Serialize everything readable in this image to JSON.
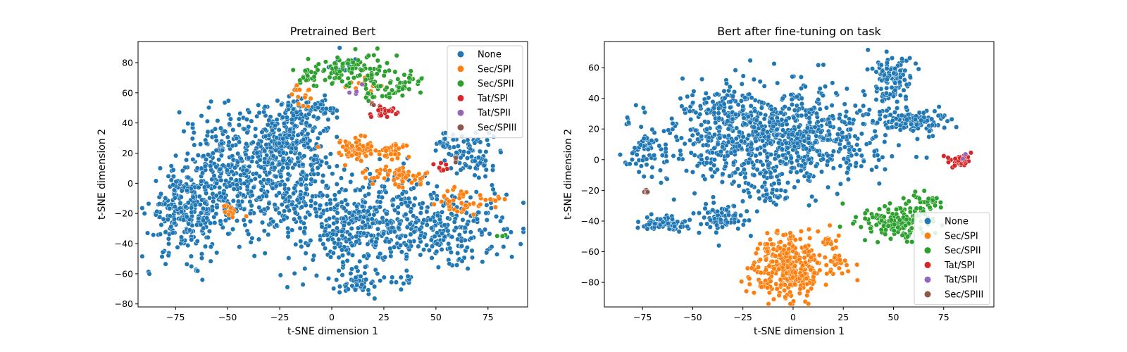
{
  "chart_data": [
    {
      "type": "scatter",
      "title": "Pretrained Bert",
      "xlabel": "t-SNE dimension 1",
      "ylabel": "t-SNE dimension 2",
      "xlim": [
        -93,
        94
      ],
      "ylim": [
        -82,
        94
      ],
      "xticks": [
        -75,
        -50,
        -25,
        0,
        25,
        50,
        75
      ],
      "yticks": [
        -80,
        -60,
        -40,
        -20,
        0,
        20,
        40,
        60,
        80
      ],
      "grid": false,
      "legend_position": "top-right",
      "series": [
        {
          "name": "None",
          "color": "#1f77b4",
          "clusters": [
            {
              "cx": -70,
              "cy": -20,
              "sx": 9,
              "sy": 14,
              "n": 260
            },
            {
              "cx": -50,
              "cy": 10,
              "sx": 12,
              "sy": 20,
              "n": 260
            },
            {
              "cx": -25,
              "cy": 5,
              "sx": 14,
              "sy": 22,
              "n": 320
            },
            {
              "cx": -20,
              "cy": 28,
              "sx": 9,
              "sy": 12,
              "n": 180
            },
            {
              "cx": 15,
              "cy": -25,
              "sx": 20,
              "sy": 16,
              "n": 420
            },
            {
              "cx": 55,
              "cy": -30,
              "sx": 16,
              "sy": 12,
              "n": 220
            },
            {
              "cx": 68,
              "cy": 18,
              "sx": 6,
              "sy": 8,
              "n": 70
            },
            {
              "cx": 55,
              "cy": 28,
              "sx": 3,
              "sy": 4,
              "n": 25
            },
            {
              "cx": 10,
              "cy": -66,
              "sx": 6,
              "sy": 4,
              "n": 50
            },
            {
              "cx": -15,
              "cy": 48,
              "sx": 6,
              "sy": 4,
              "n": 40
            },
            {
              "cx": -5,
              "cy": 50,
              "sx": 3,
              "sy": 3,
              "n": 25
            },
            {
              "cx": 35,
              "cy": -64,
              "sx": 3,
              "sy": 2,
              "n": 12
            },
            {
              "cx": 5,
              "cy": 80,
              "sx": 4,
              "sy": 3,
              "n": 12
            }
          ]
        },
        {
          "name": "Sec/SPI",
          "color": "#ff7f0e",
          "clusters": [
            {
              "cx": 12,
              "cy": 22,
              "sx": 5,
              "sy": 4,
              "n": 70
            },
            {
              "cx": 30,
              "cy": 22,
              "sx": 3,
              "sy": 3,
              "n": 30
            },
            {
              "cx": 35,
              "cy": 5,
              "sx": 6,
              "sy": 3,
              "n": 45
            },
            {
              "cx": 62,
              "cy": -12,
              "sx": 6,
              "sy": 4,
              "n": 40
            },
            {
              "cx": -50,
              "cy": -18,
              "sx": 3,
              "sy": 2,
              "n": 14
            },
            {
              "cx": 80,
              "cy": -12,
              "sx": 3,
              "sy": 2,
              "n": 8
            },
            {
              "cx": -15,
              "cy": 58,
              "sx": 4,
              "sy": 4,
              "n": 15
            },
            {
              "cx": 20,
              "cy": 5,
              "sx": 3,
              "sy": 3,
              "n": 12
            },
            {
              "cx": 15,
              "cy": 65,
              "sx": 4,
              "sy": 3,
              "n": 12
            }
          ]
        },
        {
          "name": "Sec/SPII",
          "color": "#2ca02c",
          "clusters": [
            {
              "cx": 10,
              "cy": 75,
              "sx": 9,
              "sy": 6,
              "n": 90
            },
            {
              "cx": 25,
              "cy": 62,
              "sx": 6,
              "sy": 4,
              "n": 40
            },
            {
              "cx": 38,
              "cy": 68,
              "sx": 3,
              "sy": 3,
              "n": 20
            },
            {
              "cx": -10,
              "cy": 72,
              "sx": 4,
              "sy": 3,
              "n": 20
            },
            {
              "cx": 80,
              "cy": -35,
              "sx": 2,
              "sy": 1,
              "n": 4
            }
          ]
        },
        {
          "name": "Tat/SPI",
          "color": "#d62728",
          "clusters": [
            {
              "cx": 22,
              "cy": 47,
              "sx": 4,
              "sy": 2,
              "n": 22
            },
            {
              "cx": 52,
              "cy": 10,
              "sx": 2,
              "sy": 2,
              "n": 8
            }
          ]
        },
        {
          "name": "Tat/SPII",
          "color": "#9467bd",
          "clusters": [
            {
              "cx": 12,
              "cy": 62,
              "sx": 2,
              "sy": 2,
              "n": 4
            }
          ]
        },
        {
          "name": "Sec/SPIII",
          "color": "#8c564b",
          "clusters": [
            {
              "cx": 60,
              "cy": 16,
              "sx": 1,
              "sy": 1,
              "n": 3
            },
            {
              "cx": 20,
              "cy": 52,
              "sx": 1,
              "sy": 1,
              "n": 2
            }
          ]
        }
      ]
    },
    {
      "type": "scatter",
      "title": "Bert after fine-tuning on task",
      "xlabel": "t-SNE dimension 1",
      "ylabel": "t-SNE dimension 2",
      "xlim": [
        -94,
        100
      ],
      "ylim": [
        -96,
        77
      ],
      "xticks": [
        -75,
        -50,
        -25,
        0,
        25,
        50,
        75
      ],
      "yticks": [
        -80,
        -60,
        -40,
        -20,
        0,
        20,
        40,
        60
      ],
      "grid": false,
      "legend_position": "lower-right",
      "series": [
        {
          "name": "None",
          "color": "#1f77b4",
          "clusters": [
            {
              "cx": 0,
              "cy": 15,
              "sx": 22,
              "sy": 16,
              "n": 650
            },
            {
              "cx": -35,
              "cy": 20,
              "sx": 12,
              "sy": 16,
              "n": 250
            },
            {
              "cx": 50,
              "cy": 55,
              "sx": 5,
              "sy": 7,
              "n": 90
            },
            {
              "cx": 58,
              "cy": 25,
              "sx": 10,
              "sy": 4,
              "n": 120
            },
            {
              "cx": -65,
              "cy": -42,
              "sx": 6,
              "sy": 2,
              "n": 90
            },
            {
              "cx": -35,
              "cy": -38,
              "sx": 6,
              "sy": 5,
              "n": 80
            },
            {
              "cx": -70,
              "cy": 5,
              "sx": 6,
              "sy": 14,
              "n": 60
            },
            {
              "cx": -82,
              "cy": 25,
              "sx": 1,
              "sy": 1,
              "n": 5
            },
            {
              "cx": -75,
              "cy": 10,
              "sx": 2,
              "sy": 2,
              "n": 10
            },
            {
              "cx": -12,
              "cy": -22,
              "sx": 6,
              "sy": 4,
              "n": 30
            },
            {
              "cx": 45,
              "cy": 42,
              "sx": 4,
              "sy": 3,
              "n": 20
            }
          ]
        },
        {
          "name": "Sec/SPI",
          "color": "#ff7f0e",
          "clusters": [
            {
              "cx": -2,
              "cy": -70,
              "sx": 9,
              "sy": 10,
              "n": 320
            },
            {
              "cx": 23,
              "cy": -70,
              "sx": 4,
              "sy": 4,
              "n": 25
            },
            {
              "cx": 17,
              "cy": -52,
              "sx": 3,
              "sy": 3,
              "n": 15
            }
          ]
        },
        {
          "name": "Sec/SPII",
          "color": "#2ca02c",
          "clusters": [
            {
              "cx": 52,
              "cy": -40,
              "sx": 9,
              "sy": 6,
              "n": 150
            },
            {
              "cx": 65,
              "cy": -28,
              "sx": 5,
              "sy": 4,
              "n": 30
            }
          ]
        },
        {
          "name": "Tat/SPI",
          "color": "#d62728",
          "clusters": [
            {
              "cx": 83,
              "cy": -1,
              "sx": 3,
              "sy": 2,
              "n": 45
            }
          ]
        },
        {
          "name": "Tat/SPII",
          "color": "#9467bd",
          "clusters": [
            {
              "cx": 86,
              "cy": 2,
              "sx": 1,
              "sy": 1,
              "n": 2
            }
          ]
        },
        {
          "name": "Sec/SPIII",
          "color": "#8c564b",
          "clusters": [
            {
              "cx": -73,
              "cy": -21,
              "sx": 1,
              "sy": 0.8,
              "n": 7
            }
          ]
        }
      ]
    }
  ]
}
